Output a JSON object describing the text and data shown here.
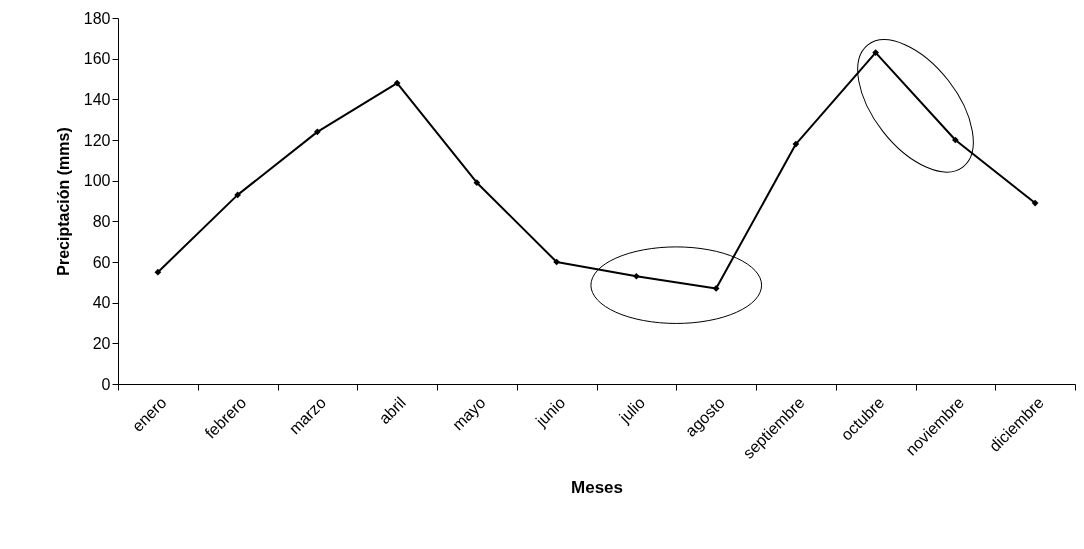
{
  "chart_data": {
    "type": "line",
    "xlabel": "Meses",
    "ylabel": "Preciptación (mms)",
    "categories": [
      "enero",
      "febrero",
      "marzo",
      "abril",
      "mayo",
      "junio",
      "julio",
      "agosto",
      "septiembre",
      "octubre",
      "noviembre",
      "diciembre"
    ],
    "series": [
      {
        "color": "#000000",
        "values": [
          55,
          93,
          124,
          148,
          99,
          60,
          53,
          47,
          118,
          163,
          120,
          89
        ]
      }
    ],
    "ylim": [
      0,
      180
    ],
    "yticks": [
      0,
      20,
      40,
      60,
      80,
      100,
      120,
      140,
      160,
      180
    ],
    "marker": "diamond",
    "line_style": "solid",
    "grid": false
  }
}
